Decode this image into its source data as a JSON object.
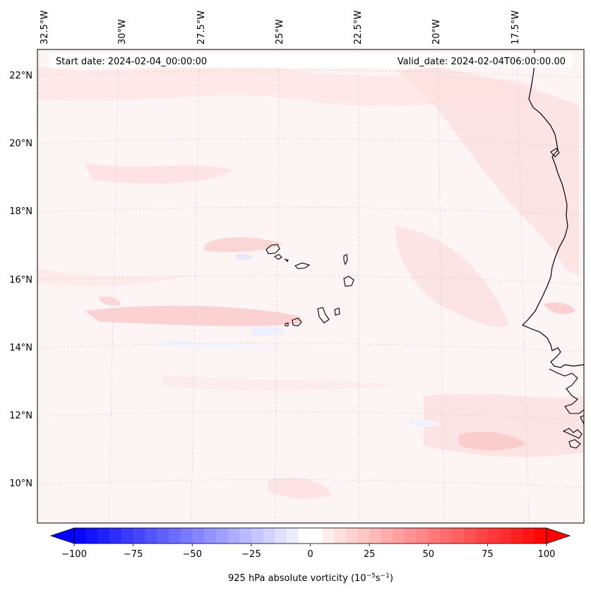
{
  "map": {
    "start_date_label": "Start date: 2024-02-04_00:00:00",
    "valid_date_label": "Valid_date: 2024-02-04T06:00:00.00",
    "lon_labels": [
      "32.5°W",
      "30°W",
      "27.5°W",
      "25°W",
      "22.5°W",
      "20°W",
      "17.5°W"
    ],
    "lat_labels": [
      "22°N",
      "20°N",
      "18°N",
      "16°N",
      "14°N",
      "12°N",
      "10°N"
    ],
    "field": "925 hPa absolute vorticity",
    "background_color": "#fdf5f5",
    "features": [
      "Cape Verde islands",
      "West African coastline"
    ]
  },
  "colorbar": {
    "label": "925 hPa absolute vorticity (10",
    "label_exp1": "−5",
    "label_mid": "s",
    "label_exp2": "−1",
    "label_end": ")",
    "ticks": [
      "−100",
      "−75",
      "−50",
      "−25",
      "0",
      "25",
      "50",
      "75",
      "100"
    ],
    "min": -100,
    "max": 100,
    "colors": {
      "negative": "#0000ff",
      "zero": "#ffffff",
      "positive": "#ff0000"
    }
  }
}
